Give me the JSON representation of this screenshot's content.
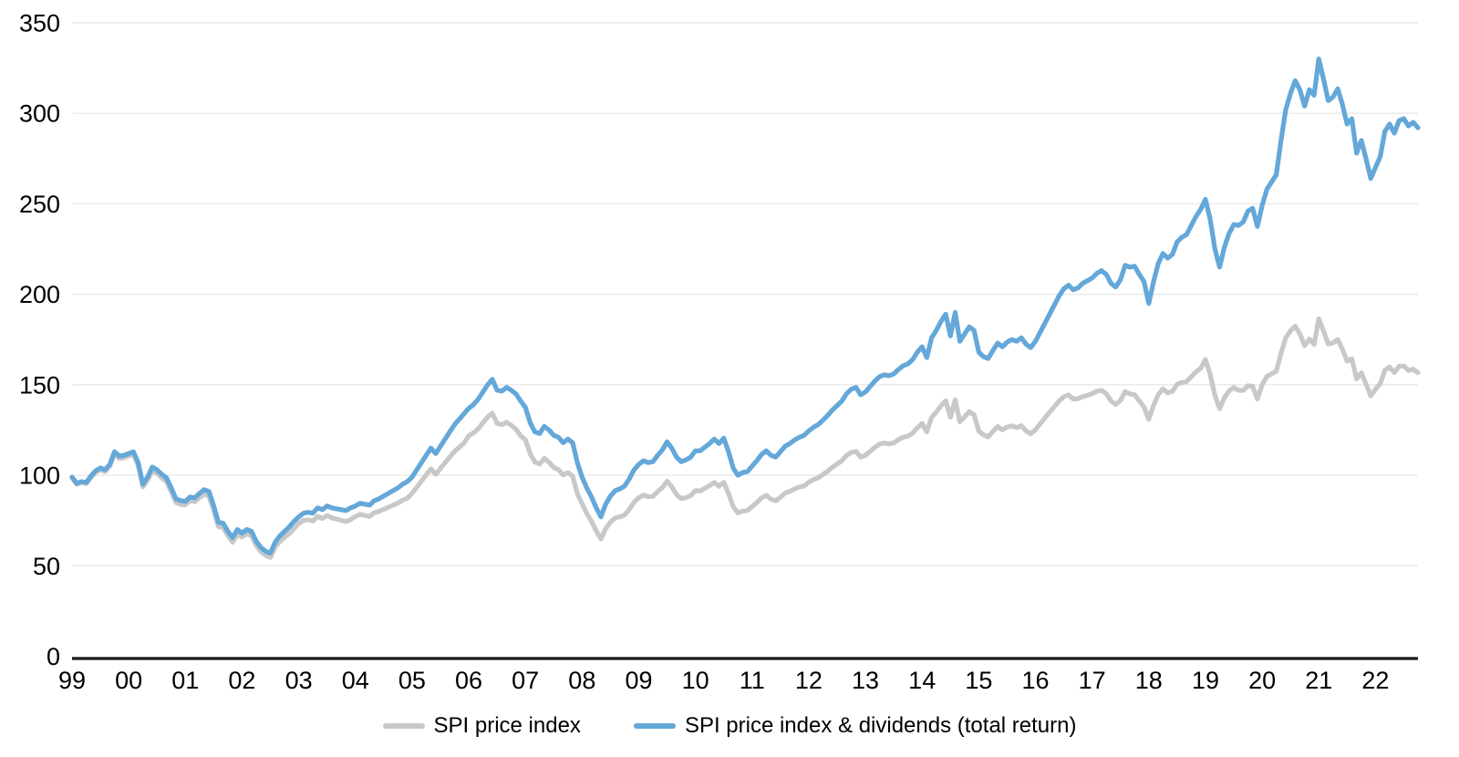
{
  "chart_data": {
    "type": "line",
    "title": "",
    "xlabel": "",
    "ylabel": "",
    "ylim": [
      0,
      350
    ],
    "y_ticks": [
      0,
      50,
      100,
      150,
      200,
      250,
      300,
      350
    ],
    "x_tick_labels": [
      "99",
      "00",
      "01",
      "02",
      "03",
      "04",
      "05",
      "06",
      "07",
      "08",
      "09",
      "10",
      "11",
      "12",
      "13",
      "14",
      "15",
      "16",
      "17",
      "18",
      "19",
      "20",
      "21",
      "22"
    ],
    "points_per_year": 12,
    "grid": "horizontal-only",
    "legend_position": "bottom-center",
    "axis_color": "#1a1a1a",
    "gridline_color": "#e8e8e8",
    "tick_label_color": "#000000",
    "series": [
      {
        "name": "SPI price index",
        "color": "#c8c8c8",
        "values": [
          98.5,
          95,
          96,
          95.3,
          98.7,
          101.6,
          103,
          102,
          105,
          111.8,
          109.3,
          109.6,
          110.7,
          111.6,
          105.5,
          93.6,
          97.4,
          102.7,
          101.1,
          98.5,
          96.4,
          90.9,
          85,
          83.8,
          83.7,
          86,
          85.4,
          87.7,
          89.5,
          88.4,
          80.5,
          71.6,
          71,
          66.5,
          63,
          67.2,
          65.9,
          67.7,
          66.6,
          61.2,
          57.7,
          55.7,
          54.6,
          60.2,
          63.4,
          65.6,
          67.8,
          70.5,
          73.3,
          75.1,
          75.4,
          74.7,
          77.3,
          76.1,
          77.7,
          76.5,
          75.8,
          75.1,
          74.4,
          75.5,
          77.2,
          78.4,
          77.8,
          77.2,
          79.3,
          80,
          81.2,
          82.3,
          83.5,
          84.6,
          86.2,
          87.3,
          90,
          93.4,
          96.8,
          100.2,
          103.5,
          100.5,
          103.7,
          106.9,
          110.1,
          113.2,
          115.5,
          117.8,
          121.8,
          123.3,
          125.7,
          128.9,
          132.1,
          134.3,
          128.7,
          127.9,
          129.3,
          127.6,
          125.5,
          121.7,
          119.6,
          112,
          107.4,
          106.2,
          109.3,
          107.2,
          104.3,
          103.1,
          100.2,
          101.5,
          99.5,
          89.9,
          84.3,
          78.9,
          74.5,
          69.2,
          64.8,
          70.5,
          74.1,
          76.4,
          77,
          78,
          81.1,
          85,
          87.6,
          89.1,
          88.1,
          88.3,
          91,
          93.2,
          96.7,
          93.6,
          89.3,
          87.1,
          87.7,
          88.7,
          91.5,
          91.3,
          92.8,
          94.3,
          96,
          93.9,
          96.1,
          89.9,
          82.6,
          79.2,
          80.2,
          80.5,
          82.7,
          84.9,
          87.5,
          88.9,
          86.8,
          85.8,
          87.9,
          90.1,
          91.1,
          92.5,
          93.5,
          94.1,
          96.1,
          97.6,
          98.6,
          100.4,
          102.2,
          104.4,
          106.2,
          108,
          110.9,
          112.6,
          113.2,
          110,
          111,
          113.2,
          115.4,
          117.2,
          117.8,
          117.3,
          117.9,
          119.7,
          121,
          121.6,
          123.3,
          126.2,
          128.6,
          123.9,
          132,
          134.8,
          138.4,
          141.2,
          132.1,
          141.6,
          129.5,
          132.3,
          135.1,
          133.4,
          124.4,
          122.3,
          121.2,
          124.3,
          126.9,
          125.1,
          126.6,
          127.3,
          126.3,
          127.4,
          124.6,
          122.9,
          125.2,
          128.4,
          131.6,
          134.8,
          137.9,
          141,
          143.4,
          144.4,
          142.1,
          142.3,
          143.5,
          144.1,
          145.1,
          146.4,
          146.9,
          145.1,
          141,
          139.1,
          141.3,
          146.2,
          144.9,
          144.6,
          141,
          137.7,
          130.9,
          138.5,
          144.6,
          147.7,
          145.5,
          146.3,
          150.3,
          151.3,
          151.7,
          154.4,
          157.1,
          159.1,
          164,
          155.8,
          144.2,
          136.7,
          142.8,
          146.5,
          148.4,
          146.9,
          146.9,
          149.5,
          149.1,
          142.1,
          150,
          154.6,
          156.1,
          157.5,
          167.4,
          176,
          179.8,
          182.4,
          178.1,
          171.6,
          175.3,
          172.3,
          186.4,
          179.7,
          172.5,
          173.1,
          175,
          169.7,
          163.1,
          164.3,
          153.3,
          156.6,
          150.5,
          143.9,
          147.5,
          150.6,
          158,
          159.8,
          156.7,
          160.2,
          160.4,
          157.9,
          158.6,
          156.7
        ]
      },
      {
        "name": "SPI price index & dividends (total return)",
        "color": "#64a7d9",
        "values": [
          99,
          95.5,
          96.5,
          96,
          99.5,
          102.5,
          104,
          103,
          106,
          113,
          110.5,
          111,
          112,
          113,
          107,
          95,
          99,
          104.5,
          103,
          100.5,
          98.5,
          93,
          87,
          86,
          85.5,
          88,
          87.5,
          90,
          92,
          91,
          83,
          74,
          73.5,
          69,
          65.5,
          70,
          68,
          70,
          69,
          63.5,
          60,
          58,
          57,
          63,
          66.5,
          69,
          71.5,
          74.5,
          77,
          79,
          79.5,
          79,
          82,
          81,
          83,
          82,
          81.5,
          81,
          80.5,
          82,
          83,
          84.5,
          84,
          83.5,
          86,
          87,
          88.5,
          90,
          91.5,
          93,
          95,
          96.5,
          99,
          103,
          107,
          111,
          115,
          112,
          116,
          120,
          124,
          128,
          131,
          134,
          137,
          139,
          142,
          146,
          150,
          153,
          147,
          146.5,
          148.5,
          147,
          145,
          141,
          137.5,
          129,
          124,
          123,
          127,
          125,
          122,
          121,
          118,
          120,
          118,
          107,
          99,
          93,
          88,
          82,
          77,
          84,
          88.5,
          91.5,
          92.5,
          94,
          98,
          103,
          106,
          108,
          107,
          107.5,
          111,
          114,
          118.5,
          115,
          110,
          107.5,
          108.5,
          110,
          113.5,
          113.5,
          115.5,
          117.5,
          120,
          117.5,
          120.5,
          113,
          104,
          100,
          101.5,
          102,
          105,
          108,
          111.5,
          113.5,
          111,
          110,
          113,
          116,
          117.5,
          119.5,
          121,
          122,
          124.5,
          126.5,
          128,
          130.5,
          133,
          136,
          138.5,
          141,
          145,
          147.5,
          148.5,
          144.5,
          146,
          149,
          152,
          154.5,
          155.5,
          155,
          156,
          158.5,
          160.5,
          161.5,
          164,
          168,
          171,
          165,
          176,
          180,
          185,
          189,
          177,
          190,
          174,
          178,
          182,
          180,
          168,
          165.5,
          164.5,
          169,
          173,
          171,
          173.5,
          175,
          174,
          176,
          172.5,
          170.5,
          174,
          179,
          184,
          189,
          194,
          199,
          203,
          205,
          202.5,
          203.5,
          206,
          207.5,
          209,
          211.5,
          213,
          211,
          206,
          204,
          208,
          216,
          215,
          215.5,
          211,
          207,
          195,
          207,
          217,
          222.5,
          220,
          222,
          229,
          231.5,
          233,
          238,
          243,
          247,
          252.5,
          241.5,
          225,
          215,
          226,
          233.5,
          238.5,
          238,
          240,
          246,
          247.5,
          237.5,
          249,
          258,
          262,
          266,
          285,
          302,
          311,
          318,
          313,
          304,
          313,
          310,
          330,
          319,
          307,
          309,
          313.5,
          305,
          294,
          297,
          278,
          285,
          275,
          264,
          270,
          276,
          290,
          294,
          289,
          296,
          297,
          293,
          295,
          292
        ]
      }
    ]
  },
  "legend": {
    "price_label": "SPI price index",
    "total_return_label": "SPI price index & dividends (total return)"
  }
}
